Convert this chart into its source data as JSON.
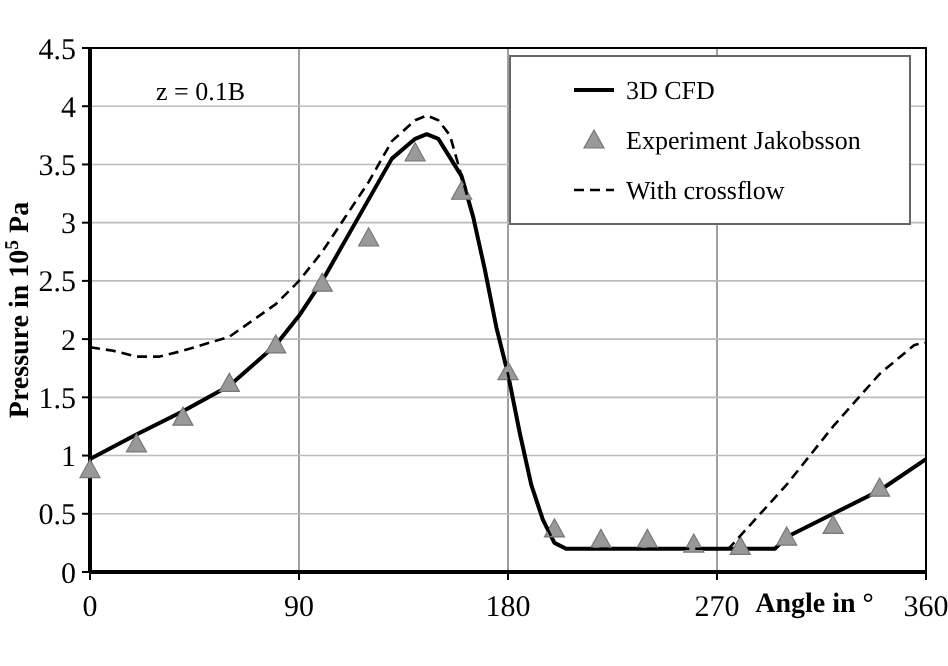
{
  "chart_data": {
    "type": "line",
    "xlabel": "Angle in °",
    "ylabel": "Pressure in 10$^{5}$ Pa",
    "annotations": [
      "z = 0.1B"
    ],
    "xlim": [
      0,
      360
    ],
    "xticks": [
      0,
      90,
      180,
      270,
      360
    ],
    "ylim": [
      0,
      4.5
    ],
    "yticks": [
      0,
      0.5,
      1,
      1.5,
      2,
      2.5,
      3,
      3.5,
      4,
      4.5
    ],
    "grid": true,
    "legend": "top right",
    "series": [
      {
        "name": "3D CFD",
        "color": "#000000",
        "line_style": "solid",
        "marker": "none",
        "x": [
          0,
          20,
          40,
          60,
          80,
          90,
          100,
          110,
          120,
          130,
          140,
          145,
          150,
          160,
          165,
          170,
          175,
          180,
          185,
          190,
          195,
          200,
          205,
          240,
          270,
          295,
          300,
          320,
          340,
          360
        ],
        "values": [
          0.97,
          1.18,
          1.38,
          1.6,
          1.95,
          2.2,
          2.5,
          2.85,
          3.2,
          3.55,
          3.72,
          3.76,
          3.72,
          3.4,
          3.05,
          2.6,
          2.1,
          1.7,
          1.2,
          0.75,
          0.45,
          0.25,
          0.2,
          0.2,
          0.2,
          0.2,
          0.3,
          0.5,
          0.7,
          0.97
        ]
      },
      {
        "name": "Experiment Jakobsson",
        "type": "scatter",
        "color": "#999999",
        "marker": "triangle",
        "x": [
          0,
          20,
          40,
          60,
          80,
          100,
          120,
          140,
          160,
          180,
          200,
          220,
          240,
          260,
          280,
          300,
          320,
          340
        ],
        "values": [
          0.88,
          1.1,
          1.33,
          1.62,
          1.95,
          2.48,
          2.87,
          3.6,
          3.27,
          1.72,
          0.37,
          0.28,
          0.28,
          0.24,
          0.22,
          0.3,
          0.4,
          0.72
        ]
      },
      {
        "name": "With crossflow",
        "color": "#000000",
        "line_style": "dashed",
        "marker": "none",
        "x": [
          0,
          10,
          20,
          30,
          40,
          60,
          80,
          90,
          100,
          110,
          120,
          130,
          140,
          145,
          150,
          155,
          160,
          165,
          170,
          175,
          180,
          185,
          190,
          195,
          200,
          205,
          240,
          275,
          300,
          320,
          340,
          355,
          360
        ],
        "values": [
          1.93,
          1.9,
          1.85,
          1.85,
          1.9,
          2.02,
          2.3,
          2.5,
          2.75,
          3.05,
          3.35,
          3.7,
          3.88,
          3.92,
          3.88,
          3.75,
          3.4,
          3.05,
          2.6,
          2.1,
          1.7,
          1.2,
          0.75,
          0.45,
          0.25,
          0.2,
          0.2,
          0.2,
          0.75,
          1.25,
          1.7,
          1.95,
          1.97
        ]
      }
    ]
  }
}
